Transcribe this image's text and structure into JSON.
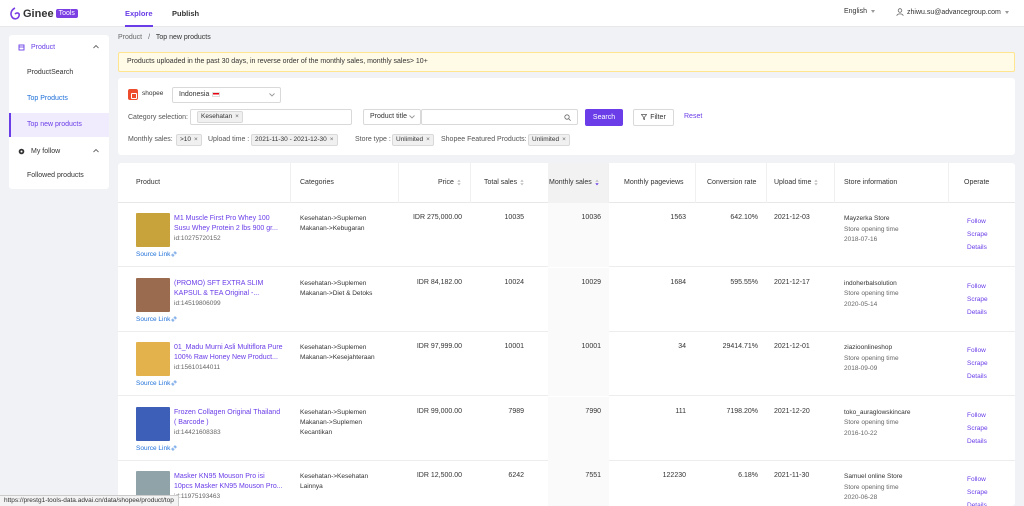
{
  "header": {
    "logo_text": "Ginee",
    "logo_badge": "Tools",
    "tabs": [
      {
        "label": "Explore"
      },
      {
        "label": "Publish"
      }
    ],
    "language": "English",
    "user_email": "zhiwu.su@advancegroup.com"
  },
  "sidebar": {
    "group_product": "Product",
    "items_product": [
      "ProductSearch",
      "Top Products",
      "Top new products"
    ],
    "group_follow": "My follow",
    "items_follow": [
      "Followed products"
    ]
  },
  "breadcrumb": {
    "root": "Product",
    "sep": "/",
    "current": "Top new products"
  },
  "notice": "Products uploaded in the past 30 days, in reverse order of the monthly sales, monthly sales> 10+",
  "filters": {
    "platform": "shopee",
    "country": "Indonesia",
    "category_label": "Category selection:",
    "category_tag": "Kesehatan",
    "field_select": "Product title",
    "search_label": "Search",
    "filter_label": "Filter",
    "reset_label": "Reset",
    "monthly_sales_label": "Monthly sales:",
    "monthly_sales_tag": ">10",
    "upload_time_label": "Upload time :",
    "upload_time_tag": "2021-11-30 - 2021-12-30",
    "store_type_label": "Store type :",
    "store_type_tag": "Unlimited",
    "featured_label": "Shopee Featured Products:",
    "featured_tag": "Unlimited"
  },
  "table": {
    "columns": [
      "Product",
      "Categories",
      "Price",
      "Total sales",
      "Monthly sales",
      "Monthly pageviews",
      "Conversion rate",
      "Upload time",
      "Store information",
      "Operate"
    ],
    "source_link_label": "Source Link",
    "ops": [
      "Follow",
      "Scrape",
      "Details"
    ],
    "rows": [
      {
        "name": "M1 Muscle First Pro Whey 100 Susu Whey Protein 2 lbs 900 gr...",
        "id": "id:10275720152",
        "cat1": "Kesehatan->Suplemen",
        "cat2": "Makanan->Kebugaran",
        "cat3": "",
        "price": "IDR 275,000.00",
        "total": "10035",
        "monthly": "10036",
        "pageviews": "1563",
        "conv": "642.10%",
        "upload": "2021-12-03",
        "store": "Mayzerka Store",
        "open_label": "Store opening time",
        "open_date": "2018-07-16",
        "thumb_color": "#c8a23a"
      },
      {
        "name": "(PROMO) SFT EXTRA SLIM KAPSUL & TEA Original -...",
        "id": "id:14519806099",
        "cat1": "Kesehatan->Suplemen",
        "cat2": "Makanan->Diet & Detoks",
        "cat3": "",
        "price": "IDR 84,182.00",
        "total": "10024",
        "monthly": "10029",
        "pageviews": "1684",
        "conv": "595.55%",
        "upload": "2021-12-17",
        "store": "indoherbalsolution",
        "open_label": "Store opening time",
        "open_date": "2020-05-14",
        "thumb_color": "#9a6b4e"
      },
      {
        "name": "01_Madu Murni Asli Multiflora Pure 100% Raw Honey New Product...",
        "id": "id:15610144011",
        "cat1": "Kesehatan->Suplemen",
        "cat2": "Makanan->Kesejahteraan",
        "cat3": "",
        "price": "IDR 97,999.00",
        "total": "10001",
        "monthly": "10001",
        "pageviews": "34",
        "conv": "29414.71%",
        "upload": "2021-12-01",
        "store": "ziazioonlineshop",
        "open_label": "Store opening time",
        "open_date": "2018-09-09",
        "thumb_color": "#e3b24c"
      },
      {
        "name": "Frozen Collagen Original Thailand ( Barcode )",
        "id": "id:14421608383",
        "cat1": "Kesehatan->Suplemen",
        "cat2": "Makanan->Suplemen",
        "cat3": "Kecantikan",
        "price": "IDR 99,000.00",
        "total": "7989",
        "monthly": "7990",
        "pageviews": "111",
        "conv": "7198.20%",
        "upload": "2021-12-20",
        "store": "toko_auraglowskincare",
        "open_label": "Store opening time",
        "open_date": "2016-10-22",
        "thumb_color": "#3e5fb8"
      },
      {
        "name": "Masker KN95 Mouson Pro isi 10pcs Masker KN95 Mouson Pro...",
        "id": "id:11975193463",
        "cat1": "Kesehatan->Kesehatan",
        "cat2": "Lainnya",
        "cat3": "",
        "price": "IDR 12,500.00",
        "total": "6242",
        "monthly": "7551",
        "pageviews": "122230",
        "conv": "6.18%",
        "upload": "2021-11-30",
        "store": "Samuel online Store",
        "open_label": "Store opening time",
        "open_date": "2020-06-28",
        "thumb_color": "#8fa3a8"
      }
    ]
  },
  "statusbar_url": "https://prestg1-tools-data.advai.cn/data/shopee/product/top"
}
